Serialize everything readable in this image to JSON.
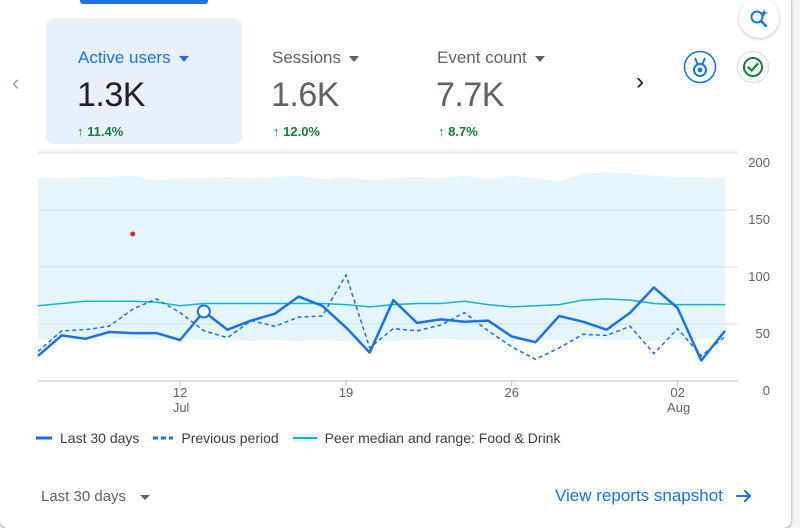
{
  "metrics": [
    {
      "label": "Active users",
      "value": "1.3K",
      "delta": "11.4%",
      "active": true
    },
    {
      "label": "Sessions",
      "value": "1.6K",
      "delta": "12.0%",
      "active": false
    },
    {
      "label": "Event count",
      "value": "7.7K",
      "delta": "8.7%",
      "active": false
    }
  ],
  "icons": {
    "prev": "chevron-left-icon",
    "next": "chevron-right-icon",
    "insights": "insights-search-icon",
    "benchmark": "medal-icon",
    "quality": "check-circle-icon"
  },
  "colors": {
    "accent": "#1a73e8",
    "positive": "#188038",
    "peer": "#12b5cb",
    "peer_band": "#e4f5fb"
  },
  "chart_data": {
    "type": "line",
    "x_start": "2024-07-06",
    "x_end": "2024-08-04",
    "x_ticks": [
      {
        "date": "2024-07-12",
        "day": "12",
        "month": "Jul"
      },
      {
        "date": "2024-07-19",
        "day": "19",
        "month": ""
      },
      {
        "date": "2024-07-26",
        "day": "26",
        "month": ""
      },
      {
        "date": "2024-08-02",
        "day": "02",
        "month": "Aug"
      }
    ],
    "y_ticks": [
      "200",
      "150",
      "100",
      "50",
      "0"
    ],
    "ylim": [
      0,
      200
    ],
    "series": [
      {
        "name": "Last 30 days",
        "style": "solid",
        "values": [
          22,
          40,
          37,
          43,
          42,
          42,
          36,
          61,
          45,
          53,
          59,
          74,
          66,
          47,
          25,
          71,
          51,
          54,
          52,
          53,
          39,
          34,
          57,
          52,
          45,
          60,
          82,
          64,
          18,
          44
        ]
      },
      {
        "name": "Previous period",
        "style": "dashed",
        "values": [
          26,
          44,
          45,
          48,
          63,
          72,
          60,
          44,
          38,
          53,
          48,
          56,
          57,
          93,
          29,
          46,
          44,
          49,
          60,
          44,
          30,
          19,
          29,
          41,
          40,
          48,
          24,
          46,
          22,
          39
        ]
      },
      {
        "name": "Peer median and range: Food & Drink",
        "style": "line",
        "values": [
          66,
          68,
          70,
          70,
          70,
          69,
          66,
          68,
          68,
          68,
          68,
          68,
          68,
          67,
          65,
          67,
          68,
          68,
          70,
          67,
          65,
          66,
          67,
          71,
          72,
          71,
          68,
          67,
          67,
          67
        ],
        "upper": [
          178,
          178,
          179,
          179,
          180,
          176,
          178,
          178,
          179,
          178,
          179,
          180,
          177,
          179,
          176,
          178,
          179,
          178,
          180,
          177,
          180,
          178,
          175,
          182,
          183,
          182,
          180,
          179,
          179,
          178
        ],
        "lower": [
          36,
          38,
          38,
          38,
          37,
          36,
          37,
          36,
          36,
          35,
          36,
          35,
          36,
          35,
          34,
          35,
          36,
          37,
          36,
          36,
          35,
          36,
          36,
          37,
          36,
          36,
          35,
          36,
          37,
          37
        ]
      }
    ],
    "anomaly": {
      "date": "2024-07-10",
      "value": 129
    },
    "highlight": {
      "date": "2024-07-13",
      "value": 61
    }
  },
  "footer": {
    "range_label": "Last 30 days",
    "link_label": "View reports snapshot"
  }
}
